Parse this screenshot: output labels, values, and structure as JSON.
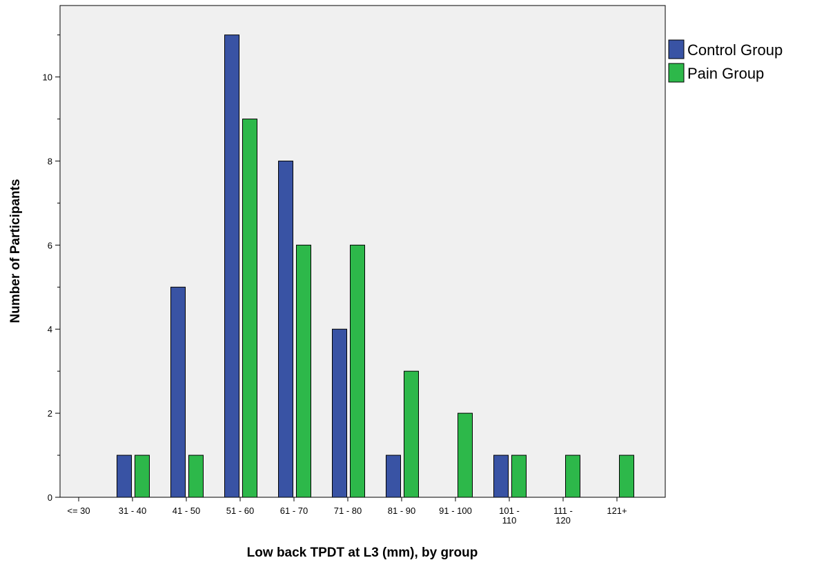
{
  "chart_data": {
    "type": "bar",
    "categories": [
      "<= 30",
      "31 - 40",
      "41 - 50",
      "51 - 60",
      "61 - 70",
      "71 - 80",
      "81 - 90",
      "91 - 100",
      "101 - 110",
      "111 - 120",
      "121+"
    ],
    "category_label_lines": [
      [
        "<= 30"
      ],
      [
        "31 - 40"
      ],
      [
        "41 - 50"
      ],
      [
        "51 - 60"
      ],
      [
        "61 - 70"
      ],
      [
        "71 - 80"
      ],
      [
        "81 - 90"
      ],
      [
        "91 - 100"
      ],
      [
        "101 -",
        "110"
      ],
      [
        "111 -",
        "120"
      ],
      [
        "121+"
      ]
    ],
    "series": [
      {
        "name": "Control Group",
        "color": "#3953a4",
        "values": [
          0,
          1,
          5,
          11,
          8,
          4,
          1,
          0,
          1,
          0,
          0
        ]
      },
      {
        "name": "Pain Group",
        "color": "#2db84a",
        "values": [
          0,
          1,
          1,
          9,
          6,
          6,
          3,
          2,
          1,
          1,
          1
        ]
      }
    ],
    "title": "",
    "xlabel": "Low back TPDT at L3 (mm), by group",
    "ylabel": "Number of Participants",
    "ylim": [
      0,
      11.7
    ],
    "yticks": [
      0,
      2,
      4,
      6,
      8,
      10
    ],
    "grid": false,
    "legend": "right-outside",
    "plot_background": "#f0f0f0"
  }
}
